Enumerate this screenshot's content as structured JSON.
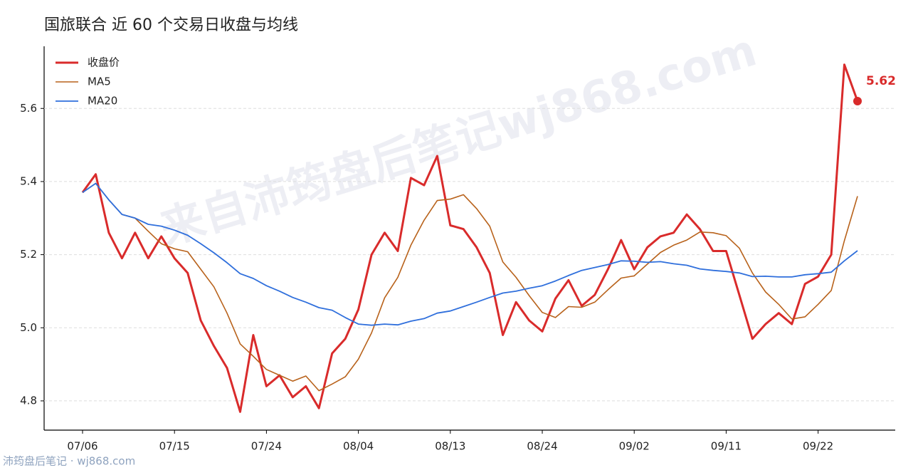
{
  "watermark": "来自沛筠盘后笔记wj868.com",
  "footer": "沛筠盘后笔记 · wj868.com",
  "chart_data": {
    "type": "line",
    "title": "国旅联合 近 60 个交易日收盘与均线",
    "categories": [
      "07/06",
      null,
      null,
      null,
      null,
      null,
      null,
      "07/15",
      null,
      null,
      null,
      null,
      null,
      null,
      "07/24",
      null,
      null,
      null,
      null,
      null,
      null,
      "08/04",
      null,
      null,
      null,
      null,
      null,
      null,
      "08/13",
      null,
      null,
      null,
      null,
      null,
      null,
      "08/24",
      null,
      null,
      null,
      null,
      null,
      null,
      "09/02",
      null,
      null,
      null,
      null,
      null,
      null,
      "09/11",
      null,
      null,
      null,
      null,
      null,
      null,
      "09/22",
      null,
      null,
      null
    ],
    "series": [
      {
        "name": "收盘价",
        "color": "#d92b2b",
        "width": 3,
        "values": [
          5.37,
          5.42,
          5.26,
          5.19,
          5.26,
          5.19,
          5.25,
          5.19,
          5.15,
          5.02,
          4.95,
          4.89,
          4.77,
          4.98,
          4.84,
          4.87,
          4.81,
          4.84,
          4.78,
          4.93,
          4.97,
          5.05,
          5.2,
          5.26,
          5.21,
          5.41,
          5.39,
          5.47,
          5.28,
          5.27,
          5.22,
          5.15,
          4.98,
          5.07,
          5.02,
          4.99,
          5.08,
          5.13,
          5.06,
          5.09,
          5.16,
          5.24,
          5.16,
          5.22,
          5.25,
          5.26,
          5.31,
          5.27,
          5.21,
          5.21,
          5.09,
          4.97,
          5.01,
          5.04,
          5.01,
          5.12,
          5.14,
          5.2,
          5.72,
          5.62
        ]
      },
      {
        "name": "MA5",
        "color": "#b8621b",
        "width": 1.6,
        "values": [
          5.37,
          5.395,
          5.35,
          5.31,
          5.3,
          5.264,
          5.23,
          5.216,
          5.208,
          5.16,
          5.112,
          5.04,
          4.956,
          4.922,
          4.886,
          4.87,
          4.854,
          4.868,
          4.828,
          4.846,
          4.866,
          4.914,
          4.986,
          5.082,
          5.138,
          5.226,
          5.294,
          5.348,
          5.352,
          5.364,
          5.326,
          5.278,
          5.18,
          5.138,
          5.088,
          5.042,
          5.028,
          5.058,
          5.056,
          5.07,
          5.104,
          5.136,
          5.142,
          5.174,
          5.206,
          5.226,
          5.24,
          5.262,
          5.26,
          5.252,
          5.218,
          5.15,
          5.098,
          5.064,
          5.024,
          5.03,
          5.064,
          5.102,
          5.238,
          5.36
        ]
      },
      {
        "name": "MA20",
        "color": "#2f6fdc",
        "width": 1.8,
        "values": [
          5.37,
          5.395,
          5.35,
          5.31,
          5.3,
          5.283,
          5.278,
          5.267,
          5.253,
          5.23,
          5.205,
          5.178,
          5.148,
          5.135,
          5.115,
          5.1,
          5.083,
          5.07,
          5.055,
          5.048,
          5.028,
          5.01,
          5.007,
          5.01,
          5.008,
          5.018,
          5.025,
          5.04,
          5.046,
          5.058,
          5.07,
          5.083,
          5.095,
          5.1,
          5.108,
          5.115,
          5.128,
          5.143,
          5.157,
          5.165,
          5.173,
          5.183,
          5.182,
          5.179,
          5.181,
          5.175,
          5.171,
          5.161,
          5.157,
          5.154,
          5.15,
          5.14,
          5.141,
          5.139,
          5.139,
          5.145,
          5.148,
          5.152,
          5.183,
          5.211
        ]
      }
    ],
    "ylim": [
      4.72,
      5.77
    ],
    "yticks": [
      4.8,
      {
        "value": 5,
        "label": "5.0"
      },
      5.2,
      5.4,
      5.6
    ],
    "grid": true,
    "legend": "upper-left"
  }
}
